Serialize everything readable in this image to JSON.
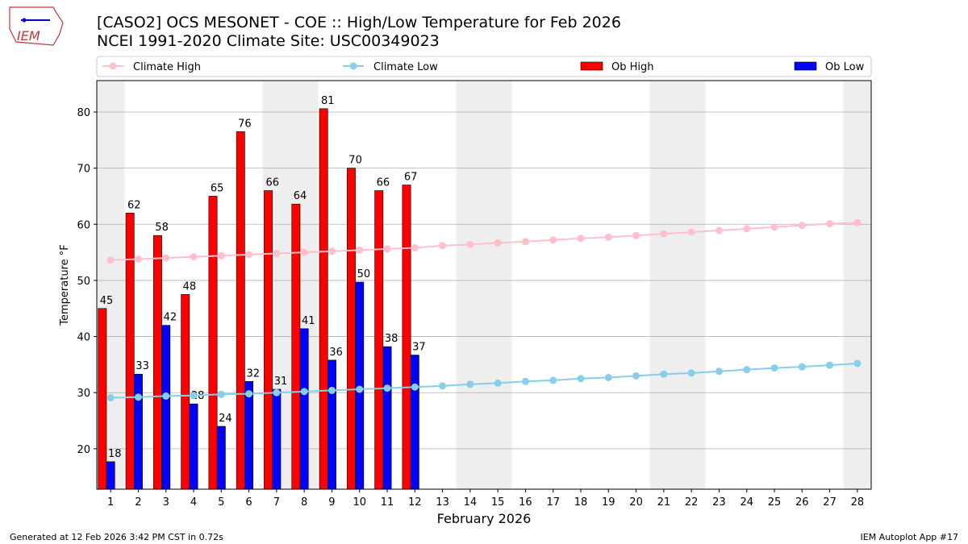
{
  "header": {
    "title_line1": "[CASO2] OCS MESONET - COE :: High/Low Temperature for Feb 2026",
    "title_line2": "NCEI 1991-2020 Climate Site: USC00349023",
    "logo_text": "IEM"
  },
  "footer": {
    "left": "Generated at 12 Feb 2026 3:42 PM CST in 0.72s",
    "right": "IEM Autoplot App #17"
  },
  "chart_data": {
    "type": "bar",
    "xlabel": "February 2026",
    "ylabel": "Temperature °F",
    "xlim": [
      0.5,
      28.5
    ],
    "ylim": [
      12.8,
      85.6
    ],
    "yticks": [
      20,
      30,
      40,
      50,
      60,
      70,
      80
    ],
    "grid": "horizontal",
    "legend_placement": "top",
    "weekend_days": [
      1,
      7,
      8,
      14,
      15,
      21,
      22,
      28
    ],
    "days": [
      1,
      2,
      3,
      4,
      5,
      6,
      7,
      8,
      9,
      10,
      11,
      12,
      13,
      14,
      15,
      16,
      17,
      18,
      19,
      20,
      21,
      22,
      23,
      24,
      25,
      26,
      27,
      28
    ],
    "colors": {
      "climate_high": "#ffc0cb",
      "climate_low": "#87ceeb",
      "ob_high": "#ff0000",
      "ob_low": "#0000ff",
      "weekend": "#eeeeee"
    },
    "series": [
      {
        "name": "Climate High",
        "kind": "line",
        "values": [
          53.6,
          53.8,
          54.0,
          54.2,
          54.4,
          54.6,
          54.8,
          55.0,
          55.2,
          55.4,
          55.6,
          55.8,
          56.2,
          56.4,
          56.7,
          56.9,
          57.2,
          57.5,
          57.7,
          58.0,
          58.3,
          58.6,
          58.9,
          59.2,
          59.5,
          59.8,
          60.1,
          60.3
        ]
      },
      {
        "name": "Climate Low",
        "kind": "line",
        "values": [
          29.1,
          29.2,
          29.4,
          29.5,
          29.7,
          29.8,
          30.0,
          30.2,
          30.4,
          30.6,
          30.8,
          31.0,
          31.2,
          31.5,
          31.7,
          32.0,
          32.2,
          32.5,
          32.7,
          33.0,
          33.3,
          33.5,
          33.8,
          34.1,
          34.4,
          34.6,
          34.9,
          35.2
        ]
      },
      {
        "name": "Ob High",
        "kind": "bar",
        "values": [
          45,
          62,
          58,
          47.5,
          65,
          76.5,
          66,
          63.6,
          80.6,
          70,
          66,
          67
        ],
        "labels": [
          "45",
          "62",
          "58",
          "48",
          "65",
          "76",
          "66",
          "64",
          "81",
          "70",
          "66",
          "67"
        ]
      },
      {
        "name": "Ob Low",
        "kind": "bar",
        "values": [
          17.7,
          33.3,
          42,
          28,
          24,
          32,
          30.6,
          41.4,
          35.8,
          49.7,
          38.2,
          36.7
        ],
        "labels": [
          "18",
          "33",
          "42",
          "28",
          "24",
          "32",
          "31",
          "41",
          "36",
          "50",
          "38",
          "37"
        ]
      }
    ]
  }
}
